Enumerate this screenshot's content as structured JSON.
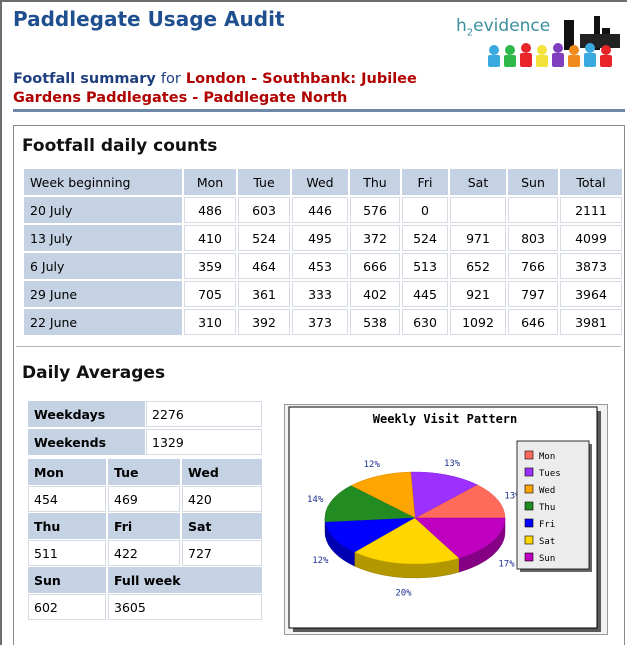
{
  "header": {
    "title": "Paddlegate Usage Audit",
    "summary_label": "Footfall summary",
    "summary_for": "for",
    "location_line1": "London - Southbank: Jubilee",
    "location_line2": "Gardens Paddlegates - Paddlegate North",
    "logo_text_h": "h",
    "logo_text_2": "2",
    "logo_text_rest": "evidence"
  },
  "footfall": {
    "heading": "Footfall daily counts",
    "columns": [
      "Week beginning",
      "Mon",
      "Tue",
      "Wed",
      "Thu",
      "Fri",
      "Sat",
      "Sun",
      "Total"
    ],
    "rows": [
      [
        "20 July",
        "486",
        "603",
        "446",
        "576",
        "0",
        "",
        "",
        "2111"
      ],
      [
        "13 July",
        "410",
        "524",
        "495",
        "372",
        "524",
        "971",
        "803",
        "4099"
      ],
      [
        "6 July",
        "359",
        "464",
        "453",
        "666",
        "513",
        "652",
        "766",
        "3873"
      ],
      [
        "29 June",
        "705",
        "361",
        "333",
        "402",
        "445",
        "921",
        "797",
        "3964"
      ],
      [
        "22 June",
        "310",
        "392",
        "373",
        "538",
        "630",
        "1092",
        "646",
        "3981"
      ]
    ]
  },
  "averages": {
    "heading": "Daily Averages",
    "weekdays_label": "Weekdays",
    "weekdays_value": "2276",
    "weekends_label": "Weekends",
    "weekends_value": "1329",
    "mon_label": "Mon",
    "mon_value": "454",
    "tue_label": "Tue",
    "tue_value": "469",
    "wed_label": "Wed",
    "wed_value": "420",
    "thu_label": "Thu",
    "thu_value": "511",
    "fri_label": "Fri",
    "fri_value": "422",
    "sat_label": "Sat",
    "sat_value": "727",
    "sun_label": "Sun",
    "sun_value": "602",
    "week_label": "Full week",
    "week_value": "3605"
  },
  "chart_data": {
    "type": "pie",
    "title": "Weekly Visit Pattern",
    "categories": [
      "Mon",
      "Tues",
      "Wed",
      "Thu",
      "Fri",
      "Sat",
      "Sun"
    ],
    "values": [
      13,
      13,
      12,
      14,
      12,
      20,
      17
    ],
    "labels": [
      "13%",
      "13%",
      "12%",
      "14%",
      "12%",
      "20%",
      "17%"
    ],
    "legend_labels": [
      "Mon",
      "Tues",
      "Wed",
      "Thu",
      "Fri",
      "Sat",
      "Sun"
    ],
    "colors": [
      "#ff6b5b",
      "#9b30ff",
      "#ffa500",
      "#228b22",
      "#0000ff",
      "#ffd700",
      "#c000c0"
    ],
    "legend": "right"
  }
}
